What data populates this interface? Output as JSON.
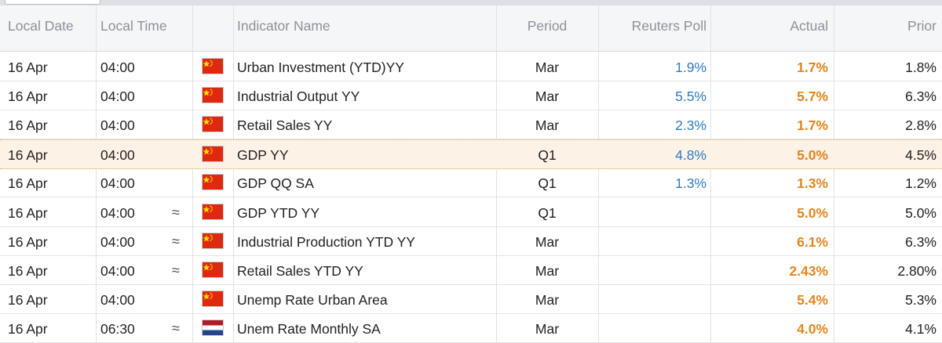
{
  "header": [
    "Local Date",
    "Local Time",
    "Indicator Name",
    "Period",
    "Reuters Poll",
    "Actual",
    "Prior"
  ],
  "rows": [
    {
      "date": "16 Apr",
      "time": "04:00",
      "indicator": "Urban Investment (YTD)YY",
      "period": "Mar",
      "poll": "1.9%",
      "actual": "1.7%",
      "prior": "1.8%"
    },
    {
      "date": "16 Apr",
      "time": "04:00",
      "indicator": "Industrial Output YY",
      "period": "Mar",
      "poll": "5.5%",
      "actual": "5.7%",
      "prior": "6.3%"
    },
    {
      "date": "16 Apr",
      "time": "04:00",
      "indicator": "Retail Sales YY",
      "period": "Mar",
      "poll": "2.3%",
      "actual": "1.7%",
      "prior": "2.8%"
    },
    {
      "date": "16 Apr",
      "time": "04:00",
      "indicator": "GDP YY",
      "period": "Q1",
      "poll": "4.8%",
      "actual": "5.0%",
      "prior": "4.5%"
    },
    {
      "date": "16 Apr",
      "time": "04:00",
      "indicator": "GDP QQ SA",
      "period": "Q1",
      "poll": "1.3%",
      "actual": "1.3%",
      "prior": "1.2%"
    },
    {
      "date": "16 Apr",
      "time": "04:00",
      "approx": "≈",
      "indicator": "GDP YTD YY",
      "period": "Q1",
      "actual": "5.0%",
      "prior": "5.0%"
    },
    {
      "date": "16 Apr",
      "time": "04:00",
      "approx": "≈",
      "indicator": "Industrial Production YTD YY",
      "period": "Mar",
      "actual": "6.1%",
      "prior": "6.3%"
    },
    {
      "date": "16 Apr",
      "time": "04:00",
      "approx": "≈",
      "indicator": "Retail Sales YTD YY",
      "period": "Mar",
      "actual": "2.43%",
      "prior": "2.80%"
    },
    {
      "date": "16 Apr",
      "time": "04:00",
      "indicator": "Unemp Rate Urban Area",
      "period": "Mar",
      "actual": "5.4%",
      "prior": "5.3%"
    },
    {
      "date": "16 Apr",
      "time": "06:30",
      "approx": "≈",
      "indicator": "Unem Rate Monthly SA",
      "period": "Mar",
      "actual": "4.0%",
      "prior": "4.1%"
    }
  ]
}
